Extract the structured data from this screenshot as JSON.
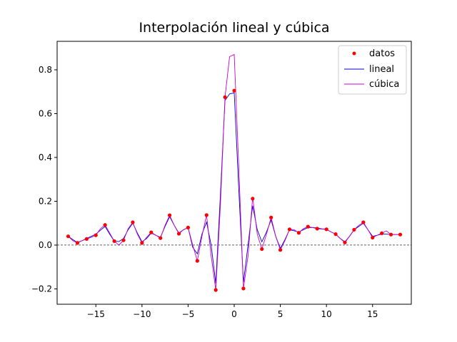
{
  "chart_data": {
    "type": "line",
    "title": "Interpolación lineal y cúbica",
    "xlabel": "",
    "ylabel": "",
    "xlim": [
      -19.2,
      19.2
    ],
    "ylim": [
      -0.27,
      0.93
    ],
    "x_ticks": [
      -15,
      -10,
      -5,
      0,
      5,
      10,
      15
    ],
    "x_tick_labels": [
      "−15",
      "−10",
      "−5",
      "0",
      "5",
      "10",
      "15"
    ],
    "y_ticks": [
      -0.2,
      0.0,
      0.2,
      0.4,
      0.6,
      0.8
    ],
    "y_tick_labels": [
      "−0.2",
      "0.0",
      "0.2",
      "0.4",
      "0.6",
      "0.8"
    ],
    "grid": false,
    "legend_position": "top-right",
    "reference_line": {
      "y": 0,
      "style": "dashed",
      "color": "#000000"
    },
    "series": [
      {
        "name": "datos",
        "kind": "markers",
        "color": "#ff0000",
        "x": [
          -18,
          -17,
          -16,
          -15,
          -14,
          -13,
          -12,
          -11,
          -10,
          -9,
          -8,
          -7,
          -6,
          -5,
          -4,
          -3,
          -2,
          -1,
          0,
          1,
          2,
          3,
          4,
          5,
          6,
          7,
          8,
          9,
          10,
          11,
          12,
          13,
          14,
          15,
          16,
          17,
          18
        ],
        "y": [
          0.04,
          0.01,
          0.028,
          0.045,
          0.092,
          0.018,
          0.022,
          0.104,
          0.01,
          0.058,
          0.032,
          0.136,
          0.052,
          0.08,
          -0.072,
          0.137,
          -0.205,
          0.675,
          0.705,
          -0.198,
          0.212,
          -0.018,
          0.126,
          -0.022,
          0.072,
          0.056,
          0.084,
          0.075,
          0.072,
          0.05,
          0.012,
          0.07,
          0.104,
          0.034,
          0.054,
          0.048,
          0.048
        ]
      },
      {
        "name": "lineal",
        "kind": "line",
        "color": "#0000cc",
        "x": [
          -18,
          -17.5,
          -17,
          -16.5,
          -16,
          -15.5,
          -15,
          -14.5,
          -14,
          -13.5,
          -13,
          -12.5,
          -12,
          -11.5,
          -11,
          -10.5,
          -10,
          -9.5,
          -9,
          -8.5,
          -8,
          -7.5,
          -7,
          -6.5,
          -6,
          -5.5,
          -5,
          -4.5,
          -4,
          -3.5,
          -3,
          -2.5,
          -2,
          -1.5,
          -1,
          -0.5,
          0,
          0.5,
          1,
          1.5,
          2,
          2.5,
          3,
          3.5,
          4,
          4.5,
          5,
          5.5,
          6,
          6.5,
          7,
          7.5,
          8,
          8.5,
          9,
          9.5,
          10,
          10.5,
          11,
          11.5,
          12,
          12.5,
          13,
          13.5,
          14,
          14.5,
          15,
          15.5,
          16,
          16.5,
          17,
          17.5,
          18
        ],
        "y": [
          0.04,
          0.025,
          0.012,
          0.02,
          0.03,
          0.04,
          0.05,
          0.068,
          0.085,
          0.05,
          0.018,
          0.016,
          0.03,
          0.07,
          0.1,
          0.055,
          0.015,
          0.03,
          0.055,
          0.045,
          0.035,
          0.085,
          0.13,
          0.09,
          0.055,
          0.07,
          0.08,
          -0.01,
          -0.04,
          0.05,
          0.105,
          0.0,
          -0.175,
          0.225,
          0.66,
          0.69,
          0.695,
          0.25,
          -0.17,
          0.0,
          0.18,
          0.07,
          0.015,
          0.06,
          0.115,
          0.04,
          -0.015,
          0.025,
          0.07,
          0.065,
          0.06,
          0.07,
          0.08,
          0.08,
          0.078,
          0.074,
          0.072,
          0.06,
          0.05,
          0.03,
          0.015,
          0.04,
          0.07,
          0.085,
          0.1,
          0.07,
          0.04,
          0.045,
          0.05,
          0.05,
          0.048,
          0.048,
          0.048
        ]
      },
      {
        "name": "cúbica",
        "kind": "line",
        "color": "#cc00cc",
        "x": [
          -18,
          -17.5,
          -17,
          -16.5,
          -16,
          -15.5,
          -15,
          -14.5,
          -14,
          -13.5,
          -13,
          -12.5,
          -12,
          -11.5,
          -11,
          -10.5,
          -10,
          -9.5,
          -9,
          -8.5,
          -8,
          -7.5,
          -7,
          -6.5,
          -6,
          -5.5,
          -5,
          -4.5,
          -4,
          -3.5,
          -3,
          -2.5,
          -2,
          -1.5,
          -1,
          -0.5,
          0,
          0.5,
          1,
          1.5,
          2,
          2.5,
          3,
          3.5,
          4,
          4.5,
          5,
          5.5,
          6,
          6.5,
          7,
          7.5,
          8,
          8.5,
          9,
          9.5,
          10,
          10.5,
          11,
          11.5,
          12,
          12.5,
          13,
          13.5,
          14,
          14.5,
          15,
          15.5,
          16,
          16.5,
          17,
          17.5,
          18
        ],
        "y": [
          0.04,
          0.02,
          0.01,
          0.02,
          0.028,
          0.035,
          0.045,
          0.075,
          0.092,
          0.055,
          0.018,
          0.0,
          0.022,
          0.075,
          0.104,
          0.05,
          0.01,
          0.035,
          0.058,
          0.045,
          0.032,
          0.09,
          0.136,
          0.09,
          0.052,
          0.07,
          0.08,
          0.0,
          -0.072,
          0.04,
          0.137,
          -0.05,
          -0.205,
          0.18,
          0.675,
          0.86,
          0.87,
          0.35,
          -0.198,
          -0.05,
          0.22,
          0.05,
          -0.018,
          0.05,
          0.126,
          0.04,
          -0.022,
          0.02,
          0.072,
          0.07,
          0.056,
          0.075,
          0.084,
          0.08,
          0.075,
          0.073,
          0.072,
          0.06,
          0.05,
          0.03,
          0.012,
          0.04,
          0.07,
          0.09,
          0.104,
          0.07,
          0.034,
          0.045,
          0.054,
          0.065,
          0.048,
          0.048,
          0.048
        ]
      }
    ]
  }
}
